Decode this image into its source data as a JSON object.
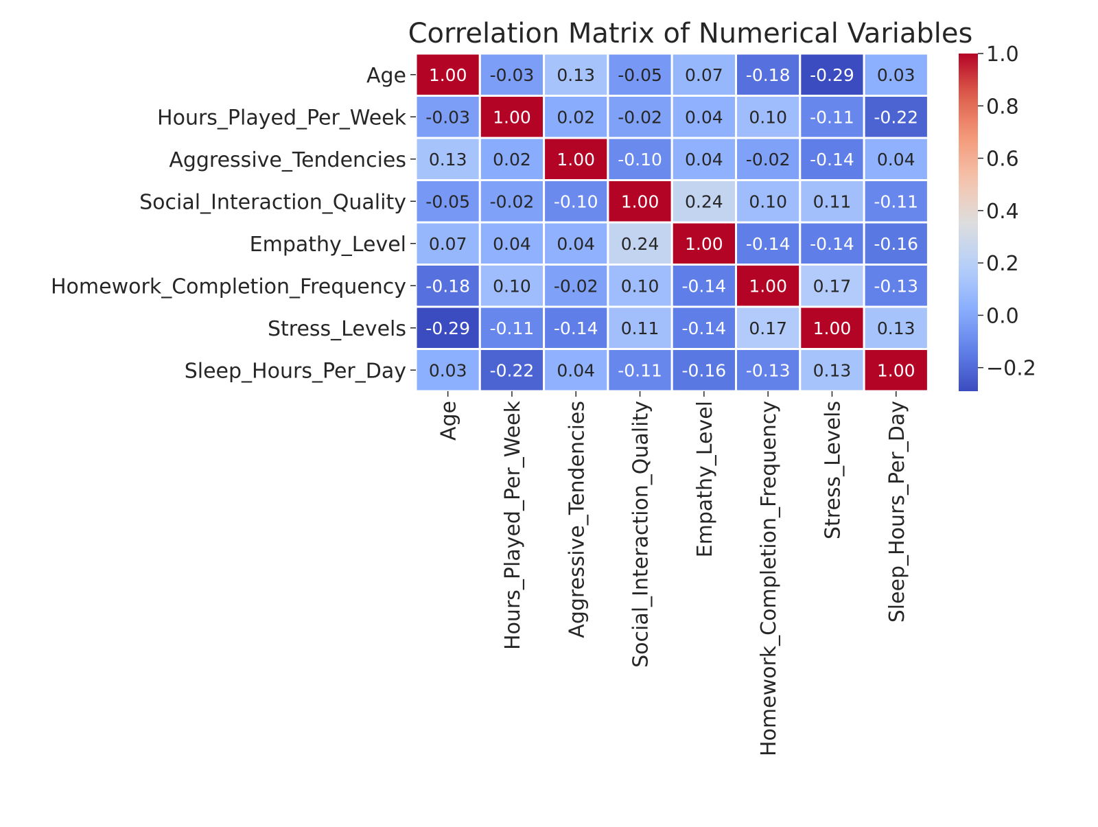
{
  "chart_data": {
    "type": "heatmap",
    "title": "Correlation Matrix of Numerical Variables",
    "xlabel": "",
    "ylabel": "",
    "colormap": "coolwarm",
    "value_range": [
      -0.29,
      1.0
    ],
    "cell_label_format": "0.00",
    "grid_lines_color": "#ffffff",
    "legend": "colorbar-right",
    "colorbar_ticks": [
      "−0.2",
      "0.0",
      "0.2",
      "0.4",
      "0.6",
      "0.8",
      "1.0"
    ],
    "colorbar_tick_values": [
      -0.2,
      0.0,
      0.2,
      0.4,
      0.6,
      0.8,
      1.0
    ],
    "categories": [
      "Age",
      "Hours_Played_Per_Week",
      "Aggressive_Tendencies",
      "Social_Interaction_Quality",
      "Empathy_Level",
      "Homework_Completion_Frequency",
      "Stress_Levels",
      "Sleep_Hours_Per_Day"
    ],
    "matrix": [
      [
        1.0,
        -0.03,
        0.13,
        -0.05,
        0.07,
        -0.18,
        -0.29,
        0.03
      ],
      [
        -0.03,
        1.0,
        0.02,
        -0.02,
        0.04,
        0.1,
        -0.11,
        -0.22
      ],
      [
        0.13,
        0.02,
        1.0,
        -0.1,
        0.04,
        -0.02,
        -0.14,
        0.04
      ],
      [
        -0.05,
        -0.02,
        -0.1,
        1.0,
        0.24,
        0.1,
        0.11,
        -0.11
      ],
      [
        0.07,
        0.04,
        0.04,
        0.24,
        1.0,
        -0.14,
        -0.14,
        -0.16
      ],
      [
        -0.18,
        0.1,
        -0.02,
        0.1,
        -0.14,
        1.0,
        0.17,
        -0.13
      ],
      [
        -0.29,
        -0.11,
        -0.14,
        0.11,
        -0.14,
        0.17,
        1.0,
        0.13
      ],
      [
        0.03,
        -0.22,
        0.04,
        -0.11,
        -0.16,
        -0.13,
        0.13,
        1.0
      ]
    ]
  }
}
